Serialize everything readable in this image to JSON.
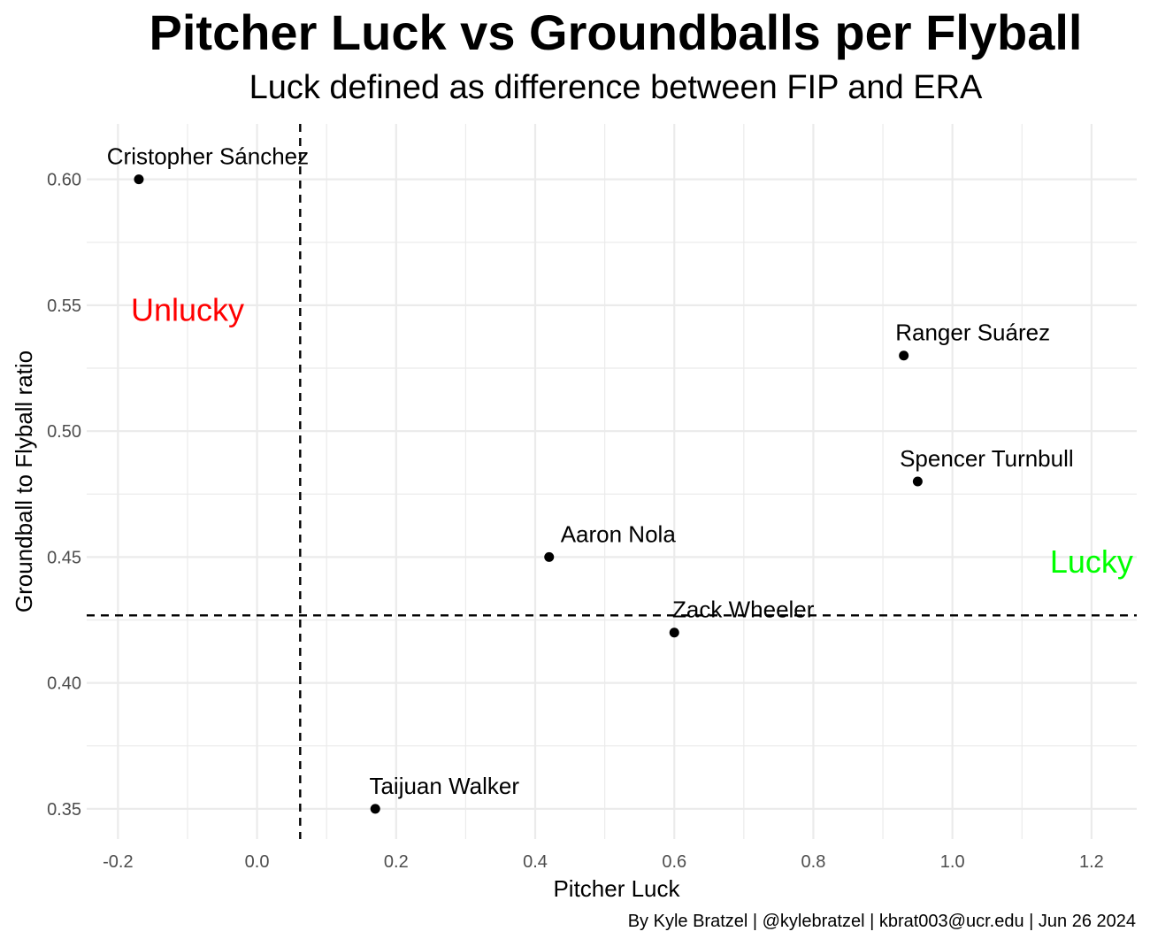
{
  "chart_data": {
    "type": "scatter",
    "title": "Pitcher Luck vs Groundballs per Flyball",
    "subtitle": "Luck defined as difference between FIP and ERA",
    "xlabel": "Pitcher Luck",
    "ylabel": "Groundball to Flyball ratio",
    "caption": "By Kyle Bratzel | @kylebratzel | kbrat003@ucr.edu | Jun 26 2024",
    "xlim": [
      -0.245,
      1.265
    ],
    "ylim": [
      0.338,
      0.622
    ],
    "x_ticks": [
      -0.2,
      0.0,
      0.2,
      0.4,
      0.6,
      0.8,
      1.0,
      1.2
    ],
    "x_tick_labels": [
      "-0.2",
      "0.0",
      "0.2",
      "0.4",
      "0.6",
      "0.8",
      "1.0",
      "1.2"
    ],
    "y_ticks": [
      0.35,
      0.4,
      0.45,
      0.5,
      0.55,
      0.6
    ],
    "y_tick_labels": [
      "0.35",
      "0.40",
      "0.45",
      "0.50",
      "0.55",
      "0.60"
    ],
    "grid": true,
    "points": [
      {
        "label": "Cristopher Sánchez",
        "x": -0.17,
        "y": 0.6
      },
      {
        "label": "Ranger Suárez",
        "x": 0.93,
        "y": 0.53
      },
      {
        "label": "Spencer Turnbull",
        "x": 0.95,
        "y": 0.48
      },
      {
        "label": "Aaron Nola",
        "x": 0.42,
        "y": 0.45
      },
      {
        "label": "Zack Wheeler",
        "x": 0.6,
        "y": 0.42
      },
      {
        "label": "Taijuan Walker",
        "x": 0.17,
        "y": 0.35
      }
    ],
    "reference_lines": {
      "vertical_x": 0.062,
      "horizontal_y": 0.4268,
      "style": "dashed"
    },
    "annotations": [
      {
        "text": "Unlucky",
        "x": -0.1,
        "y": 0.548,
        "color": "#ff0000"
      },
      {
        "text": "Lucky",
        "x": 1.2,
        "y": 0.448,
        "color": "#00ff00"
      }
    ],
    "colors": {
      "points": "#000000",
      "grid": "#ebebeb",
      "unlucky": "#ff0000",
      "lucky": "#00ff00"
    }
  }
}
